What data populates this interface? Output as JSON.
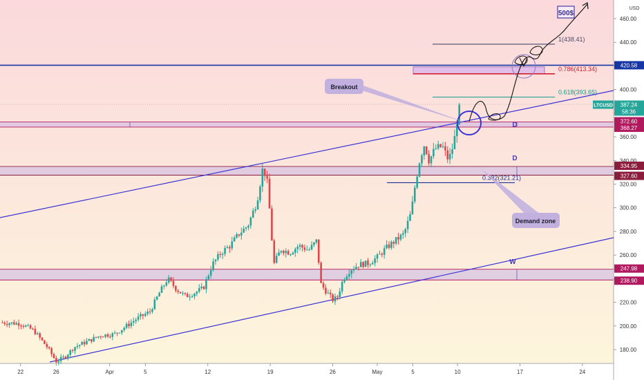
{
  "chart_data": {
    "type": "candlestick",
    "symbol": "LTCUSD",
    "currency": "USD",
    "timeframe_countdown": "58:36",
    "last_price": 387.24,
    "ylim": [
      160,
      480
    ],
    "y_ticks": [
      180,
      200,
      220,
      240,
      260,
      280,
      300,
      320,
      340,
      360,
      380,
      400,
      420,
      440,
      460
    ],
    "x_ticks": [
      {
        "label": "22",
        "day": 0
      },
      {
        "label": "26",
        "day": 4
      },
      {
        "label": "Apr",
        "day": 10
      },
      {
        "label": "5",
        "day": 14
      },
      {
        "label": "12",
        "day": 21
      },
      {
        "label": "19",
        "day": 28
      },
      {
        "label": "26",
        "day": 35
      },
      {
        "label": "May",
        "day": 40
      },
      {
        "label": "5",
        "day": 44
      },
      {
        "label": "10",
        "day": 49
      },
      {
        "label": "17",
        "day": 56
      },
      {
        "label": "24",
        "day": 63
      }
    ],
    "x_range_days": [
      -2.3,
      66.5
    ],
    "anchors": [
      [
        -2.3,
        203
      ],
      [
        0,
        202
      ],
      [
        1.5,
        196
      ],
      [
        3,
        182
      ],
      [
        4,
        170
      ],
      [
        5,
        174
      ],
      [
        6,
        182
      ],
      [
        7.5,
        187
      ],
      [
        9,
        192
      ],
      [
        10.5,
        193
      ],
      [
        11.5,
        198
      ],
      [
        13,
        206
      ],
      [
        14.5,
        212
      ],
      [
        15.5,
        227
      ],
      [
        16.5,
        240
      ],
      [
        17.5,
        231
      ],
      [
        18.5,
        225
      ],
      [
        19.5,
        228
      ],
      [
        20.5,
        232
      ],
      [
        21.5,
        252
      ],
      [
        22.5,
        262
      ],
      [
        23.5,
        268
      ],
      [
        24.5,
        278
      ],
      [
        25.5,
        285
      ],
      [
        26.5,
        305
      ],
      [
        27.2,
        335
      ],
      [
        27.7,
        320
      ],
      [
        28.4,
        252
      ],
      [
        29.2,
        265
      ],
      [
        30.2,
        262
      ],
      [
        31.2,
        268
      ],
      [
        32.3,
        264
      ],
      [
        33.2,
        272
      ],
      [
        33.7,
        235
      ],
      [
        34.4,
        228
      ],
      [
        35,
        222
      ],
      [
        35.5,
        224
      ],
      [
        36.2,
        240
      ],
      [
        37,
        248
      ],
      [
        38,
        252
      ],
      [
        39,
        253
      ],
      [
        40,
        258
      ],
      [
        41,
        266
      ],
      [
        42,
        272
      ],
      [
        43,
        278
      ],
      [
        43.8,
        296
      ],
      [
        44.3,
        322
      ],
      [
        44.8,
        342
      ],
      [
        45.3,
        354
      ],
      [
        45.8,
        340
      ],
      [
        46.5,
        350
      ],
      [
        47.3,
        352
      ],
      [
        48,
        340
      ],
      [
        48.6,
        355
      ],
      [
        49.2,
        388
      ]
    ],
    "horizontal_levels": [
      {
        "price": 420.58,
        "label": "420.58",
        "color": "#1736a6"
      },
      {
        "price": 372.6,
        "label": "372.60",
        "color": "#b0195e"
      },
      {
        "price": 368.27,
        "label": "368.27",
        "color": "#b0195e"
      },
      {
        "price": 334.95,
        "label": "334.95",
        "color": "#8a1c3c"
      },
      {
        "price": 327.6,
        "label": "327.60",
        "color": "#8a1c3c"
      },
      {
        "price": 247.98,
        "label": "247.98",
        "color": "#b0195e"
      },
      {
        "price": 238.9,
        "label": "238.90",
        "color": "#b0195e"
      }
    ],
    "zones": [
      {
        "top": 372.6,
        "bottom": 368.27,
        "marker": "D"
      },
      {
        "top": 334.95,
        "bottom": 327.6,
        "marker": "D"
      },
      {
        "top": 247.98,
        "bottom": 238.9,
        "marker": "W"
      }
    ],
    "fib_levels": [
      {
        "ratio": "1",
        "price": 438.41,
        "text": "1(438.41)",
        "color": "#4a4a6a"
      },
      {
        "ratio": "0.786",
        "price": 413.34,
        "text": "0.786(413.34)",
        "color": "#d0202f"
      },
      {
        "ratio": "0.618",
        "price": 393.65,
        "text": "0.618(393.65)",
        "color": "#119c8c"
      },
      {
        "ratio": "0.382",
        "price": 321.21,
        "text": "0.382(321.21)",
        "color": "#1a2f9a"
      }
    ],
    "annotations": [
      {
        "text": "Breakout"
      },
      {
        "text": "Demand zone"
      },
      {
        "text": "500$"
      }
    ]
  }
}
